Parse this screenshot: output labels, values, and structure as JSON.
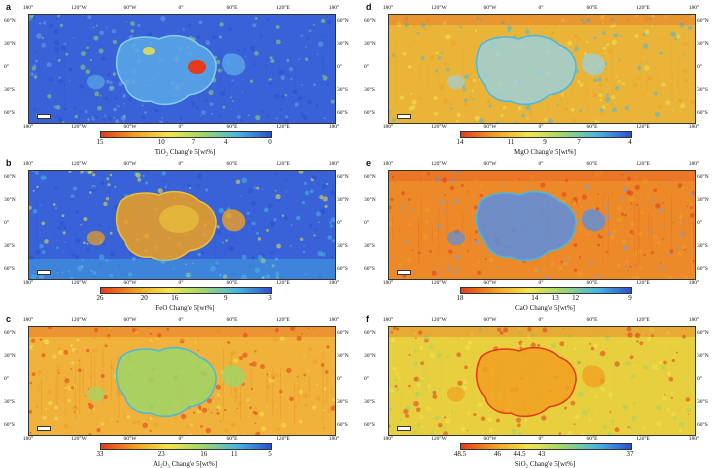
{
  "axes": {
    "top_labels": [
      "180°",
      "120°W",
      "60°W",
      "0°",
      "60°E",
      "120°E",
      "180°"
    ],
    "right_labels": [
      "60°N",
      "30°N",
      "0°",
      "30°S",
      "60°S"
    ],
    "left_labels": [
      "60°N",
      "30°N",
      "0°",
      "30°S",
      "60°S"
    ]
  },
  "panels": [
    {
      "letter": "a",
      "base_color": "#3a62d8",
      "ticks": [
        "15",
        "10",
        "7",
        "4",
        "0"
      ],
      "tick_positions": [
        0.0,
        0.36,
        0.55,
        0.74,
        1.0
      ],
      "colorbar_colors": [
        "#e43a1a",
        "#f0a020",
        "#f2e64a",
        "#9fd56a",
        "#49b8e0",
        "#2a4fd0"
      ],
      "title": "TiO₂  Chang'e 5[wt%]",
      "features": "high-ti"
    },
    {
      "letter": "d",
      "base_color": "#e9b437",
      "ticks": [
        "14",
        "11",
        "9",
        "7",
        "4"
      ],
      "tick_positions": [
        0.0,
        0.3,
        0.5,
        0.7,
        1.0
      ],
      "colorbar_colors": [
        "#e43a1a",
        "#f0a020",
        "#f2e64a",
        "#9fd56a",
        "#49b8e0",
        "#2a4fd0"
      ],
      "title": "MgO  Chang'e 5[wt%]",
      "features": "mgo"
    },
    {
      "letter": "b",
      "base_color": "#3a62d8",
      "ticks": [
        "26",
        "20",
        "16",
        "9",
        "3"
      ],
      "tick_positions": [
        0.0,
        0.26,
        0.44,
        0.74,
        1.0
      ],
      "colorbar_colors": [
        "#e43a1a",
        "#f0a020",
        "#f2e64a",
        "#9fd56a",
        "#49b8e0",
        "#2a4fd0"
      ],
      "title": "FeO  Chang'e 5[wt%]",
      "features": "feo"
    },
    {
      "letter": "e",
      "base_color": "#ec8a2a",
      "ticks": [
        "18",
        "14",
        "13",
        "12",
        "9"
      ],
      "tick_positions": [
        0.0,
        0.44,
        0.56,
        0.68,
        1.0
      ],
      "colorbar_colors": [
        "#e43a1a",
        "#f0a020",
        "#f2e64a",
        "#9fd56a",
        "#49b8e0",
        "#2a4fd0"
      ],
      "title": "CaO  Chang'e 5[wt%]",
      "features": "cao"
    },
    {
      "letter": "c",
      "base_color": "#f0b23a",
      "ticks": [
        "33",
        "23",
        "16",
        "11",
        "5"
      ],
      "tick_positions": [
        0.0,
        0.36,
        0.61,
        0.79,
        1.0
      ],
      "colorbar_colors": [
        "#e43a1a",
        "#f0a020",
        "#f2e64a",
        "#9fd56a",
        "#49b8e0",
        "#2a4fd0"
      ],
      "title": "Al₂O₃  Chang'e 5[wt%]",
      "features": "al"
    },
    {
      "letter": "f",
      "base_color": "#e8cf3e",
      "ticks": [
        "48.5",
        "46",
        "44.5",
        "43",
        "37"
      ],
      "tick_positions": [
        0.0,
        0.22,
        0.35,
        0.48,
        1.0
      ],
      "colorbar_colors": [
        "#e43a1a",
        "#f0a020",
        "#f2e64a",
        "#9fd56a",
        "#49b8e0",
        "#2a4fd0"
      ],
      "title": "SiO₂  Chang'e 5[wt%]",
      "features": "si"
    }
  ]
}
